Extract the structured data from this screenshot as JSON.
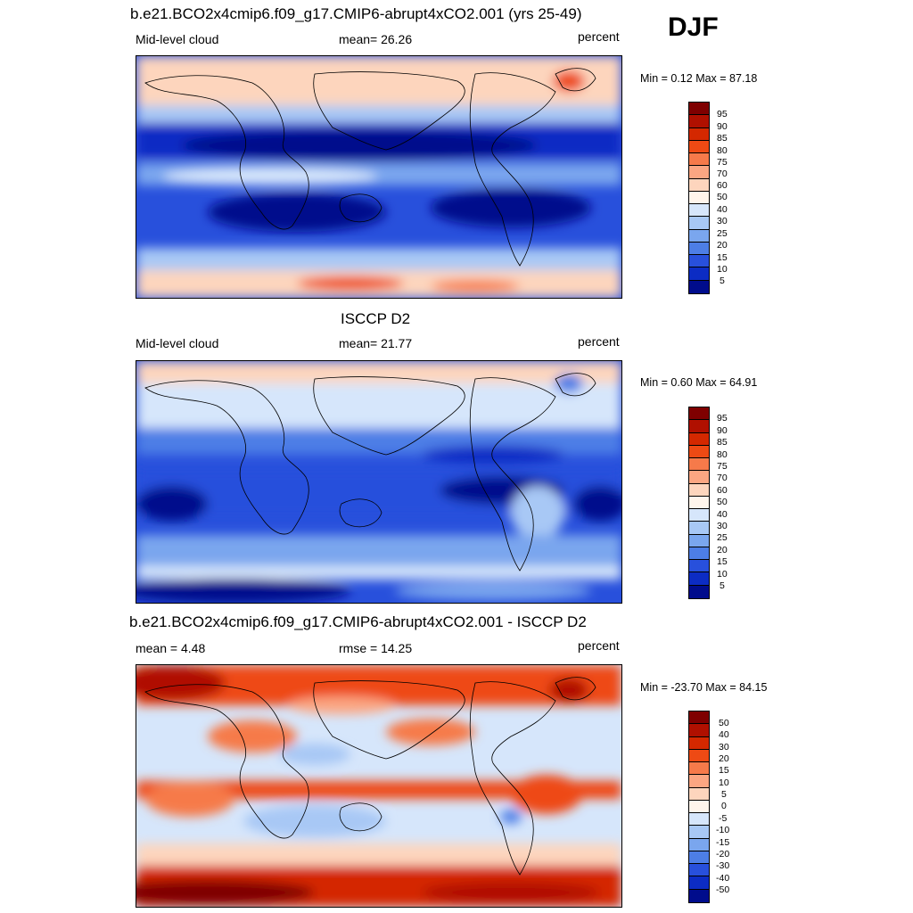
{
  "season": "DJF",
  "panels": [
    {
      "title": "b.e21.BCO2x4cmip6.f09_g17.CMIP6-abrupt4xCO2.001 (yrs 25-49)",
      "left_label": "Mid-level cloud",
      "center_label": "mean=  26.26",
      "right_label": "percent",
      "minmax": "Min =   0.12 Max =  87.18",
      "colorbar_labels": [
        "95",
        "90",
        "85",
        "80",
        "75",
        "70",
        "60",
        "50",
        "40",
        "30",
        "25",
        "20",
        "15",
        "10",
        "5"
      ]
    },
    {
      "title": "ISCCP D2",
      "left_label": "Mid-level cloud",
      "center_label": "mean=  21.77",
      "right_label": "percent",
      "minmax": "Min =   0.60 Max =  64.91",
      "colorbar_labels": [
        "95",
        "90",
        "85",
        "80",
        "75",
        "70",
        "60",
        "50",
        "40",
        "30",
        "25",
        "20",
        "15",
        "10",
        "5"
      ]
    },
    {
      "title": "b.e21.BCO2x4cmip6.f09_g17.CMIP6-abrupt4xCO2.001 - ISCCP D2",
      "left_label": "mean =   4.48",
      "center_label": "rmse =  14.25",
      "right_label": "percent",
      "minmax": "Min = -23.70 Max =  84.15",
      "colorbar_labels": [
        "50",
        "40",
        "30",
        "20",
        "15",
        "10",
        "5",
        "0",
        "-5",
        "-10",
        "-15",
        "-20",
        "-30",
        "-40",
        "-50"
      ]
    }
  ],
  "colorbar_colors": [
    "#7f0000",
    "#b01000",
    "#d42800",
    "#ee4a14",
    "#f67a4a",
    "#fba682",
    "#fdd5bd",
    "#fff5ec",
    "#d6e6fb",
    "#a8c8f5",
    "#7aa6ee",
    "#4d7ee6",
    "#2850dc",
    "#0c2cc4",
    "#000c8c"
  ]
}
